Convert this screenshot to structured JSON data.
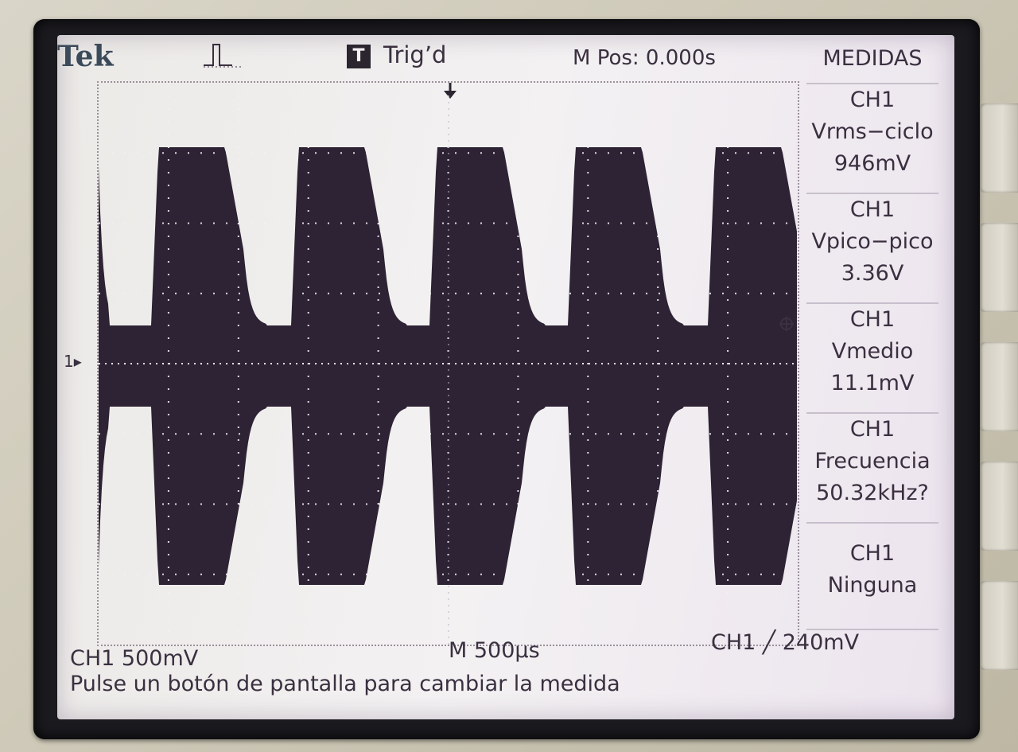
{
  "header": {
    "brand": "Tek",
    "trigger_icon_letter": "T",
    "trigger_status": "Trig’d",
    "position": "M Pos: 0.000s"
  },
  "panel": {
    "title": "MEDIDAS",
    "measurements": [
      {
        "channel": "CH1",
        "name": "Vrms−ciclo",
        "value": "946mV"
      },
      {
        "channel": "CH1",
        "name": "Vpico−pico",
        "value": "3.36V"
      },
      {
        "channel": "CH1",
        "name": "Vmedio",
        "value": "11.1mV"
      },
      {
        "channel": "CH1",
        "name": "Frecuencia",
        "value": "50.32kHz?"
      },
      {
        "channel": "CH1",
        "name": "Ninguna",
        "value": ""
      }
    ]
  },
  "plot": {
    "channel_marker": "1"
  },
  "footer": {
    "ch1_scale": "CH1  500mV",
    "time_scale": "M 500µs",
    "trigger": "CH1 ╱ 240mV",
    "help": "Pulse un botón de pantalla para cambiar la medida"
  },
  "colors": {
    "trace": "#241a2c",
    "screen": "#efedee",
    "text": "#3a3040"
  }
}
